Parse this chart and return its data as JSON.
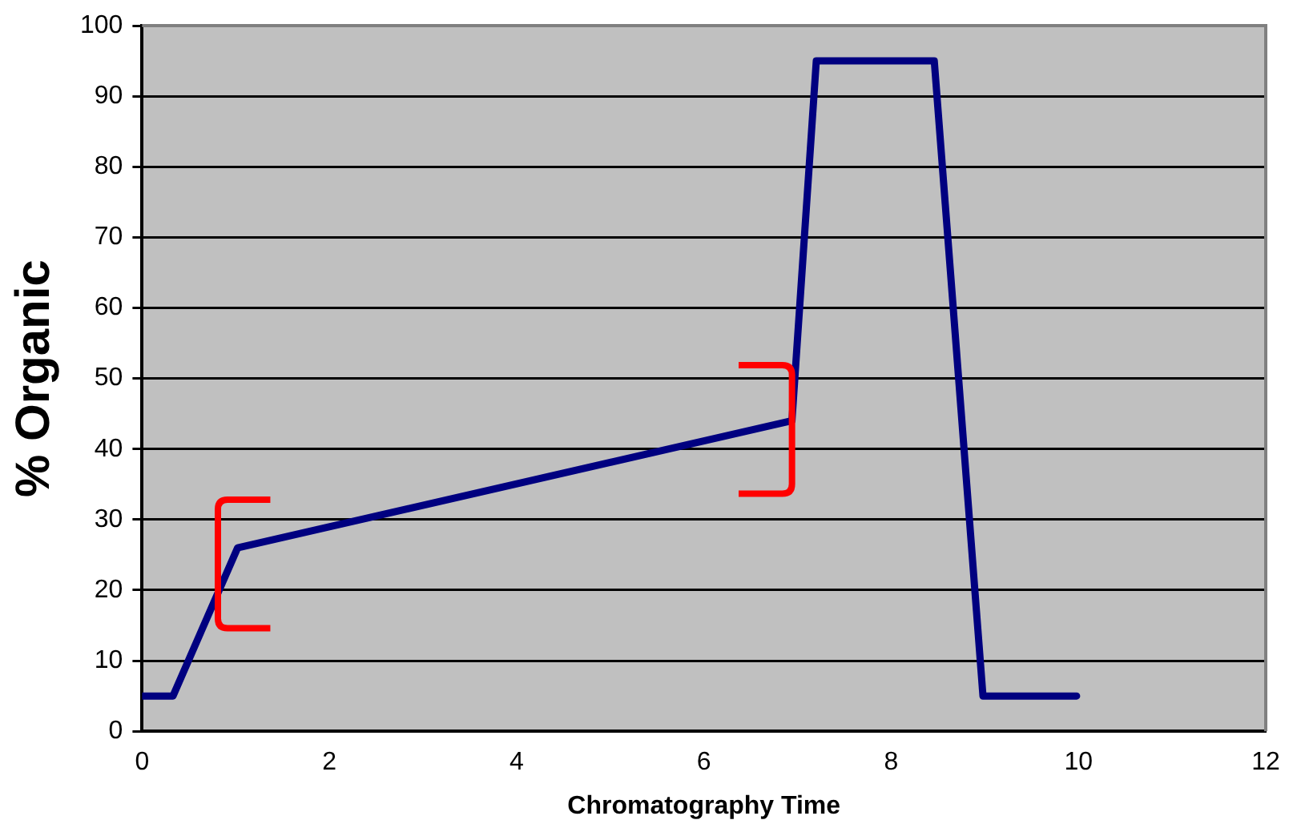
{
  "chart_data": {
    "type": "line",
    "xlabel": "Chromatography Time",
    "ylabel": "% Organic",
    "series": [
      {
        "color": "#000080",
        "x": [
          0,
          0.33,
          1.02,
          6.94,
          7.2,
          8.46,
          8.98,
          9.98
        ],
        "values": [
          5,
          5,
          26,
          44,
          95,
          95,
          5,
          5
        ]
      }
    ],
    "xlim": [
      0,
      12
    ],
    "xticks": [
      0,
      2,
      4,
      6,
      8,
      10,
      12
    ],
    "ylim": [
      0,
      100
    ],
    "yticks": [
      0,
      10,
      20,
      30,
      40,
      50,
      60,
      70,
      80,
      90,
      100
    ],
    "grid": "y",
    "legend": false,
    "marker": "none",
    "line_style": "solid"
  }
}
